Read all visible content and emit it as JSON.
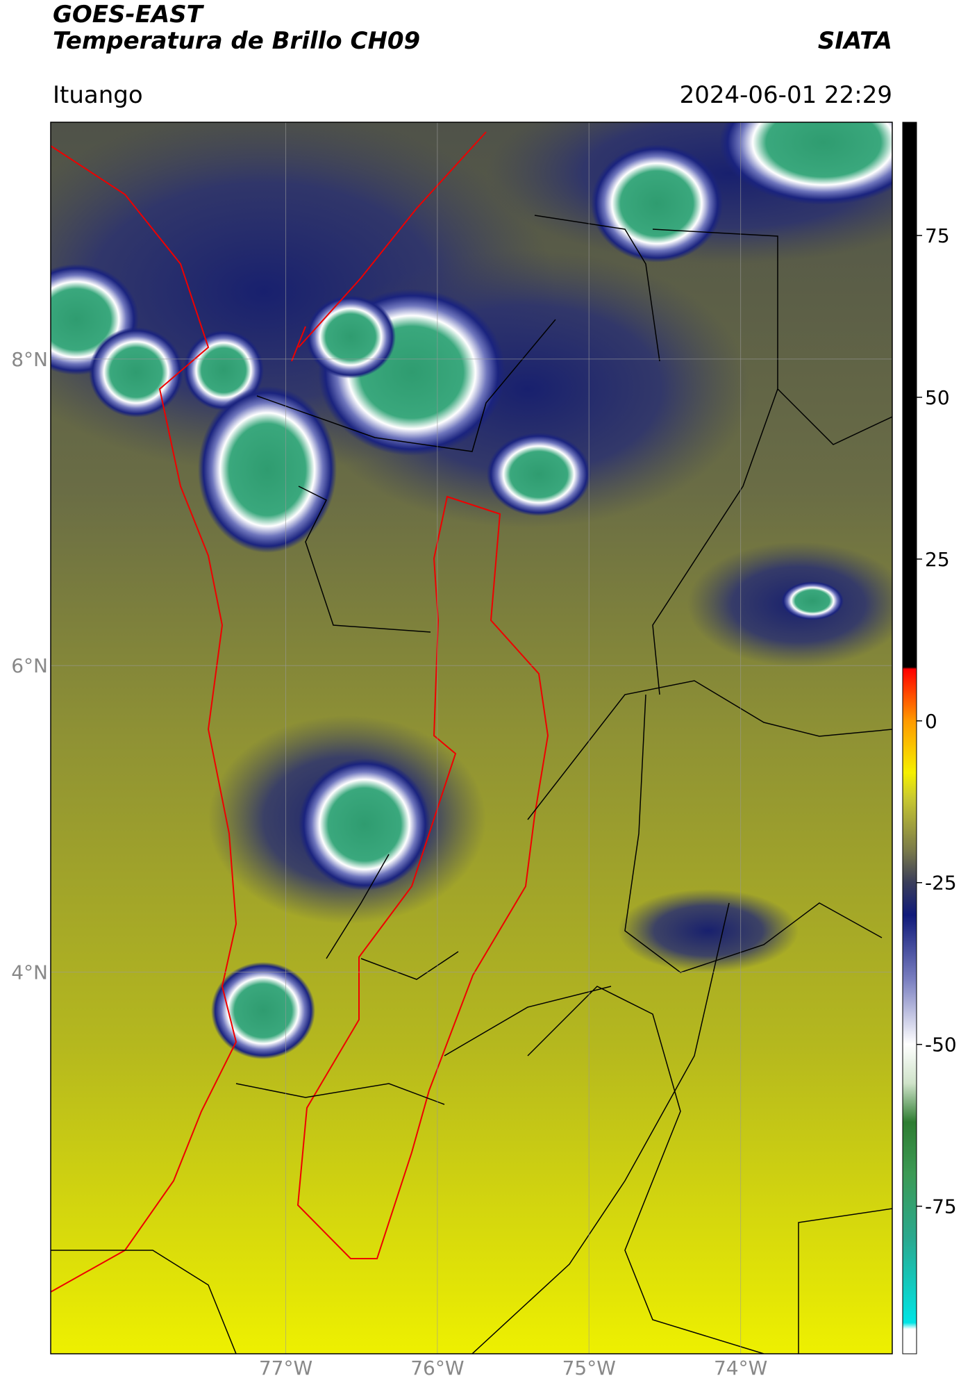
{
  "header": {
    "title": "GOES-EAST",
    "subtitle": "Temperatura de Brillo CH09",
    "org": "SIATA",
    "location": "Ituango",
    "datetime": "2024-06-01 22:29"
  },
  "map": {
    "lon_range": [
      -78.55,
      -73.0
    ],
    "lat_range": [
      1.51,
      9.545
    ],
    "lat_ticks": [
      {
        "value": 8,
        "label": "8°N"
      },
      {
        "value": 6,
        "label": "6°N"
      },
      {
        "value": 4,
        "label": "4°N"
      }
    ],
    "lon_ticks": [
      {
        "value": -77,
        "label": "77°W"
      },
      {
        "value": -76,
        "label": "76°W"
      },
      {
        "value": -75,
        "label": "75°W"
      },
      {
        "value": -74,
        "label": "74°W"
      }
    ]
  },
  "colorbar": {
    "range": [
      -97.8,
      92.5
    ],
    "ticks": [
      75,
      50,
      25,
      0,
      -25,
      -50,
      -75
    ],
    "colors": [
      {
        "value": -97.8,
        "color": "#ffffff"
      },
      {
        "value": -94,
        "color": "#ffffff"
      },
      {
        "value": -93,
        "color": "#00e5e5"
      },
      {
        "value": -80,
        "color": "#2aa98f"
      },
      {
        "value": -70,
        "color": "#3c9a55"
      },
      {
        "value": -62,
        "color": "#2e7d32"
      },
      {
        "value": -56,
        "color": "#cfe3c9"
      },
      {
        "value": -50,
        "color": "#ffffff"
      },
      {
        "value": -40,
        "color": "#7a7fc0"
      },
      {
        "value": -30,
        "color": "#101a7a"
      },
      {
        "value": -25,
        "color": "#3a3d5a"
      },
      {
        "value": -20,
        "color": "#7a7a4a"
      },
      {
        "value": -12,
        "color": "#c8c830"
      },
      {
        "value": -8,
        "color": "#f5f000"
      },
      {
        "value": 0,
        "color": "#ff9a00"
      },
      {
        "value": 8,
        "color": "#ff0000"
      },
      {
        "value": 8.3,
        "color": "#000000"
      },
      {
        "value": 92.5,
        "color": "#000000"
      }
    ]
  }
}
